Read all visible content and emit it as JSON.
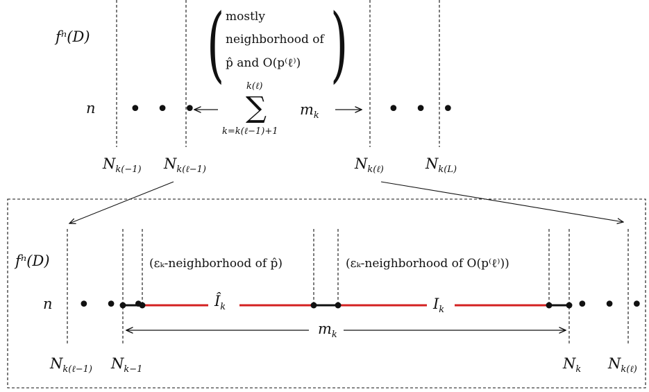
{
  "colors": {
    "ink": "#111111",
    "interval": "#d42020",
    "background": "#ffffff"
  },
  "top": {
    "f_label": "fⁿ(D)",
    "n_label": "n",
    "left_dots": "• • •",
    "right_dots": "• • •",
    "annotation_lines": [
      "mostly",
      "neighborhood of",
      "p̂ and O(p⁽ℓ⁾)"
    ],
    "sum_upper": "k(ℓ)",
    "sum_symbol": "∑",
    "sum_lower": "k=k(ℓ−1)+1",
    "sum_term": "m",
    "sum_term_sub": "k",
    "ticks": [
      {
        "base": "N",
        "sub": "k(−1)"
      },
      {
        "base": "N",
        "sub": "k(ℓ−1)"
      },
      {
        "base": "N",
        "sub": "k(ℓ)"
      },
      {
        "base": "N",
        "sub": "k(L)"
      }
    ]
  },
  "bottom": {
    "f_label": "fⁿ(D)",
    "n_label": "n",
    "left_dots": "• • •",
    "right_dots": "• • •",
    "hat_interval": {
      "base": "Î",
      "sub": "k"
    },
    "interval": {
      "base": "I",
      "sub": "k"
    },
    "region_left": "(εₖ-neighborhood of p̂)",
    "region_right": "(εₖ-neighborhood of O(p⁽ℓ⁾))",
    "span_label": {
      "base": "m",
      "sub": "k"
    },
    "ticks": [
      {
        "base": "N",
        "sub": "k(ℓ−1)"
      },
      {
        "base": "N",
        "sub": "k−1"
      },
      {
        "base": "N",
        "sub": "k"
      },
      {
        "base": "N",
        "sub": "k(ℓ)"
      }
    ]
  }
}
